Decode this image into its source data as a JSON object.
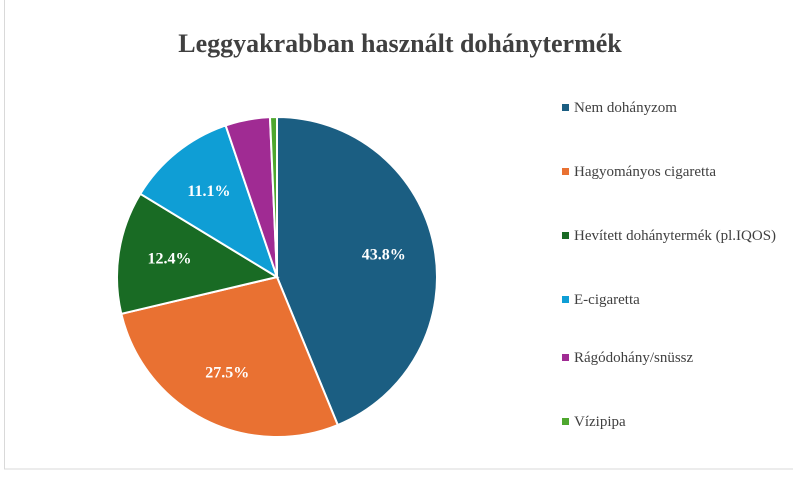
{
  "chart_data": {
    "type": "pie",
    "title": "Leggyakrabban használt dohánytermék",
    "categories": [
      "Nem dohányzom",
      "Hagyományos cigaretta",
      "Hevített dohánytermék (pl.IQOS)",
      "E-cigaretta",
      "Rágódohány/snüssz",
      "Vízipipa"
    ],
    "values": [
      43.8,
      27.5,
      12.4,
      11.1,
      4.5,
      0.7
    ],
    "value_labels": [
      "43.8%",
      "27.5%",
      "12.4%",
      "11.1%",
      null,
      null
    ],
    "colors": [
      "#1b5e82",
      "#e97132",
      "#196b24",
      "#0f9ed5",
      "#a02b93",
      "#4ea72e"
    ],
    "legend": "right"
  }
}
